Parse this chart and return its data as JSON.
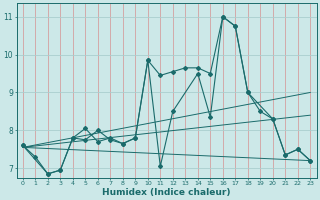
{
  "xlabel": "Humidex (Indice chaleur)",
  "bg_color": "#cce8e8",
  "line_color": "#1a6b6b",
  "grid_color_v": "#d4a0a0",
  "grid_color_h": "#aacece",
  "xlim": [
    -0.5,
    23.5
  ],
  "ylim": [
    6.75,
    11.35
  ],
  "yticks": [
    7,
    8,
    9,
    10,
    11
  ],
  "xticks": [
    0,
    1,
    2,
    3,
    4,
    5,
    6,
    7,
    8,
    9,
    10,
    11,
    12,
    13,
    14,
    15,
    16,
    17,
    18,
    19,
    20,
    21,
    22,
    23
  ],
  "line1_x": [
    0,
    1,
    2,
    3,
    4,
    5,
    6,
    7,
    8,
    9,
    10,
    11,
    12,
    14,
    15,
    16,
    17,
    18,
    20,
    21,
    22,
    23
  ],
  "line1_y": [
    7.6,
    7.3,
    6.85,
    6.95,
    7.8,
    7.75,
    8.0,
    7.75,
    7.65,
    7.8,
    9.85,
    7.05,
    8.5,
    9.5,
    8.35,
    11.0,
    10.75,
    9.0,
    8.3,
    7.35,
    7.5,
    7.2
  ],
  "line2_x": [
    0,
    2,
    3,
    4,
    5,
    6,
    7,
    8,
    9,
    10,
    11,
    12,
    13,
    14,
    15,
    16,
    17,
    18,
    19,
    20,
    21,
    22,
    23
  ],
  "line2_y": [
    7.6,
    6.85,
    6.95,
    7.8,
    8.05,
    7.7,
    7.8,
    7.65,
    7.8,
    9.85,
    9.45,
    9.55,
    9.65,
    9.65,
    9.5,
    11.0,
    10.75,
    9.0,
    8.5,
    8.3,
    7.35,
    7.5,
    7.2
  ],
  "trend1_x": [
    0,
    23
  ],
  "trend1_y": [
    7.55,
    7.2
  ],
  "trend2_x": [
    0,
    23
  ],
  "trend2_y": [
    7.55,
    9.0
  ],
  "trend3_x": [
    0,
    23
  ],
  "trend3_y": [
    7.55,
    8.4
  ]
}
